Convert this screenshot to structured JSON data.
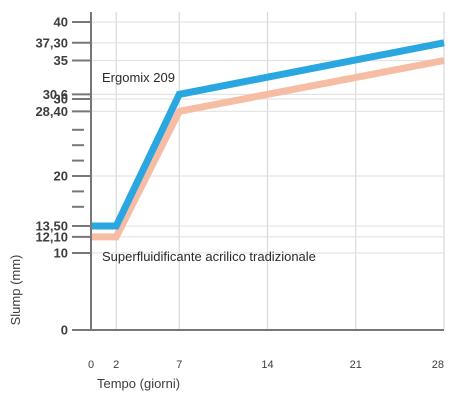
{
  "chart_data": {
    "type": "line",
    "title": "",
    "xlabel": "Tempo (giorni)",
    "ylabel": "Slump (mm)",
    "xlim": [
      0,
      28
    ],
    "ylim": [
      0,
      40
    ],
    "x_ticks": [
      {
        "value": 0,
        "label": "0"
      },
      {
        "value": 2,
        "label": "2"
      },
      {
        "value": 7,
        "label": "7"
      },
      {
        "value": 14,
        "label": "14"
      },
      {
        "value": 21,
        "label": "21"
      },
      {
        "value": 28,
        "label": "28"
      }
    ],
    "y_ticks": [
      {
        "value": 0,
        "label": "0"
      },
      {
        "value": 10,
        "label": "10"
      },
      {
        "value": 12.1,
        "label": "12,10"
      },
      {
        "value": 13.5,
        "label": "13,50"
      },
      {
        "value": 20,
        "label": "20"
      },
      {
        "value": 28.4,
        "label": "28,40"
      },
      {
        "value": 30,
        "label": "30"
      },
      {
        "value": 30.6,
        "label": "30,6"
      },
      {
        "value": 35,
        "label": "35"
      },
      {
        "value": 37.3,
        "label": "37,30"
      },
      {
        "value": 40,
        "label": "40"
      }
    ],
    "y_minor_ticks": [
      16,
      18,
      22,
      24,
      26
    ],
    "series": [
      {
        "name": "Ergomix 209",
        "color": "#2aa6e0",
        "x": [
          0,
          2,
          7,
          28
        ],
        "y": [
          13.5,
          13.5,
          30.6,
          37.3
        ]
      },
      {
        "name": "Superfluidificante acrilico tradizionale",
        "color": "#f7bca4",
        "x": [
          0,
          2,
          7,
          28
        ],
        "y": [
          12.1,
          12.1,
          28.4,
          35
        ]
      }
    ]
  }
}
